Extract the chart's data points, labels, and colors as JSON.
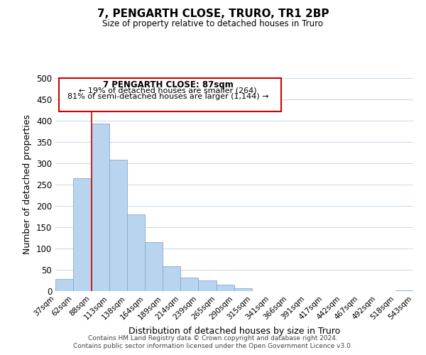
{
  "title": "7, PENGARTH CLOSE, TRURO, TR1 2BP",
  "subtitle": "Size of property relative to detached houses in Truro",
  "xlabel": "Distribution of detached houses by size in Truro",
  "ylabel": "Number of detached properties",
  "bar_color": "#b8d4ee",
  "bar_edge_color": "#88aacc",
  "grid_color": "#c8d8e8",
  "annotation_box_color": "#cc0000",
  "vline_color": "#cc0000",
  "vline_x": 88,
  "annotation_text_line1": "7 PENGARTH CLOSE: 87sqm",
  "annotation_text_line2": "← 19% of detached houses are smaller (264)",
  "annotation_text_line3": "81% of semi-detached houses are larger (1,144) →",
  "footer_line1": "Contains HM Land Registry data © Crown copyright and database right 2024.",
  "footer_line2": "Contains public sector information licensed under the Open Government Licence v3.0.",
  "ylim": [
    0,
    500
  ],
  "bin_edges": [
    37,
    62,
    88,
    113,
    138,
    164,
    189,
    214,
    239,
    265,
    290,
    315,
    341,
    366,
    391,
    417,
    442,
    467,
    492,
    518,
    543
  ],
  "bar_heights": [
    29,
    265,
    393,
    309,
    180,
    115,
    58,
    32,
    25,
    15,
    6,
    0,
    0,
    0,
    0,
    0,
    0,
    0,
    0,
    2
  ],
  "yticks": [
    0,
    50,
    100,
    150,
    200,
    250,
    300,
    350,
    400,
    450,
    500
  ],
  "background_color": "#ffffff"
}
